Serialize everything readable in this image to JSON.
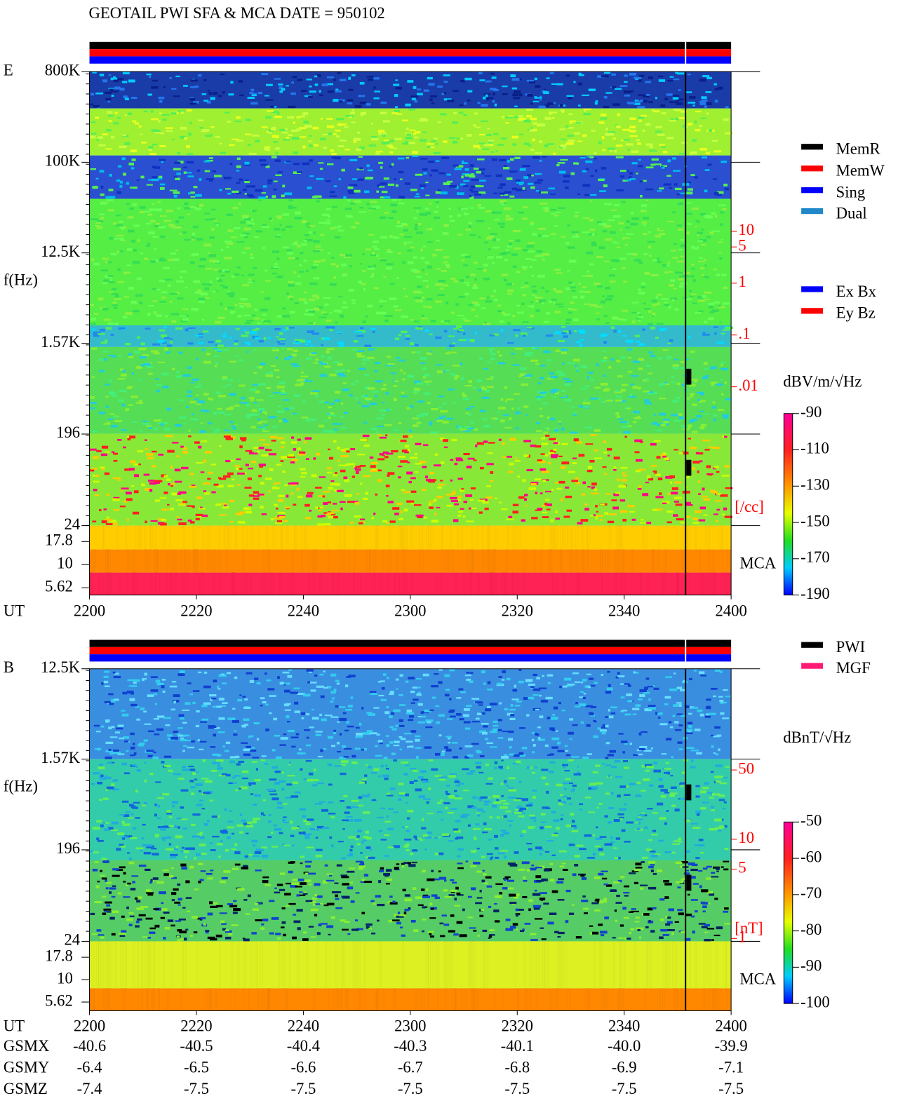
{
  "title": "GEOTAIL  PWI SFA & MCA   DATE = 950102",
  "panels": [
    {
      "label": "E",
      "y_axis_label": "f(Hz)",
      "freq_lim": [
        24,
        800000
      ],
      "freq_ticks": [
        {
          "value": 800000,
          "label": "800K"
        },
        {
          "value": 100000,
          "label": "100K"
        },
        {
          "value": 12500,
          "label": "12.5K"
        },
        {
          "value": 1570,
          "label": "1.57K"
        },
        196,
        24
      ],
      "mca_ticks": [
        "17.8",
        "10",
        "5.62"
      ],
      "mca_label": "MCA",
      "density_lim": [
        0.01,
        10
      ],
      "density_ticks": [
        10,
        5,
        1,
        {
          "value": 0.1,
          "label": ".1"
        },
        {
          "value": 0.01,
          "label": ".01"
        }
      ],
      "density_unit": "[/cc]",
      "colorbar_unit": "dBV/m/√Hz",
      "colorbar_lim": [
        -190,
        -90
      ],
      "colorbar_ticks": [
        -90,
        -110,
        -130,
        -150,
        -170,
        -190
      ],
      "legend": [
        [
          {
            "name": "MemR",
            "color": "#000000"
          },
          {
            "name": "MemW",
            "color": "#ff0000"
          },
          {
            "name": "Sing",
            "color": "#0000ff"
          },
          {
            "name": "Dual",
            "color": "#1e88c8"
          }
        ],
        [
          {
            "name": "Ex Bx",
            "color": "#0000ff"
          },
          {
            "name": "Ey Bz",
            "color": "#ff0000"
          }
        ]
      ]
    },
    {
      "label": "B",
      "y_axis_label": "f(Hz)",
      "freq_lim": [
        24,
        12500
      ],
      "freq_ticks": [
        {
          "value": 12500,
          "label": "12.5K"
        },
        {
          "value": 1570,
          "label": "1.57K"
        },
        196,
        24
      ],
      "mca_ticks": [
        "17.8",
        "10",
        "5.62"
      ],
      "mca_label": "MCA",
      "density_lim": [
        1,
        50
      ],
      "density_ticks": [
        50,
        10,
        5,
        1
      ],
      "density_unit": "[nT]",
      "colorbar_unit": "dBnT/√Hz",
      "colorbar_lim": [
        -100,
        -50
      ],
      "colorbar_ticks": [
        -50,
        -60,
        -70,
        -80,
        -90,
        -100
      ],
      "legend": [
        [
          {
            "name": "PWI",
            "color": "#000000"
          },
          {
            "name": "MGF",
            "color": "#ff1a75"
          }
        ]
      ]
    }
  ],
  "x_axis": {
    "label": "UT",
    "ticks": [
      "2200",
      "2220",
      "2240",
      "2300",
      "2320",
      "2340",
      "2400"
    ]
  },
  "orbit": [
    {
      "label": "GSMX",
      "values": [
        "-40.6",
        "-40.5",
        "-40.4",
        "-40.3",
        "-40.1",
        "-40.0",
        "-39.9"
      ]
    },
    {
      "label": "GSMY",
      "values": [
        "-6.4",
        "-6.5",
        "-6.6",
        "-6.7",
        "-6.8",
        "-6.9",
        "-7.1"
      ]
    },
    {
      "label": "GSMZ",
      "values": [
        "-7.4",
        "-7.5",
        "-7.5",
        "-7.5",
        "-7.5",
        "-7.5",
        "-7.5"
      ]
    }
  ]
}
